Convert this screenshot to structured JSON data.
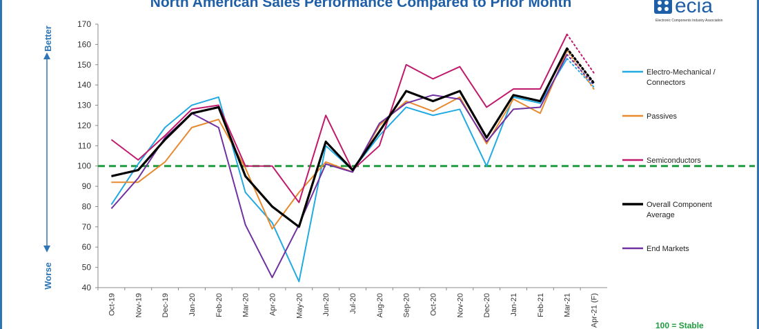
{
  "logo": {
    "word": "ecia",
    "subtitle": "Electronic Components Industry Association"
  },
  "annotations": {
    "better": "Better",
    "worse": "Worse",
    "stable": "100 = Stable"
  },
  "colors": {
    "electro": "#21a9e1",
    "passives": "#e8892e",
    "semis": "#c0196b",
    "overall": "#000000",
    "end": "#7030a0",
    "baseline": "#1e9b3c",
    "arrow": "#2e75b6"
  },
  "chart_data": {
    "type": "line",
    "title": "North American Sales Performance Compared to Prior Month",
    "categories": [
      "Oct-19",
      "Nov-19",
      "Dec-19",
      "Jan-20",
      "Feb-20",
      "Mar-20",
      "Apr-20",
      "May-20",
      "Jun-20",
      "Jul-20",
      "Aug-20",
      "Sep-20",
      "Oct-20",
      "Nov-20",
      "Dec-20",
      "Jan-21",
      "Feb-21",
      "Mar-21",
      "Apr-21 (F)"
    ],
    "ylim": [
      40,
      170
    ],
    "yticks": [
      40,
      50,
      60,
      70,
      80,
      90,
      100,
      110,
      120,
      130,
      140,
      150,
      160,
      170
    ],
    "baseline": 100,
    "forecast_last_point": true,
    "series": [
      {
        "name": "Electro-Mechanical / Connectors",
        "key": "electro",
        "values": [
          81,
          101,
          119,
          130,
          134,
          87,
          72,
          43,
          110,
          98,
          115,
          129,
          125,
          128,
          100,
          134,
          131,
          153,
          139
        ]
      },
      {
        "name": "Passives",
        "key": "passives",
        "values": [
          92,
          92,
          102,
          119,
          123,
          99,
          69,
          87,
          102,
          97,
          120,
          132,
          127,
          134,
          111,
          133,
          126,
          157,
          138
        ]
      },
      {
        "name": "Semiconductors",
        "key": "semis",
        "values": [
          113,
          103,
          115,
          128,
          130,
          100,
          100,
          82,
          125,
          98,
          110,
          150,
          143,
          149,
          129,
          138,
          138,
          165,
          146
        ]
      },
      {
        "name": "Overall Component Average",
        "key": "overall",
        "values": [
          95,
          98,
          113,
          126,
          129,
          95,
          80,
          70,
          112,
          98,
          117,
          137,
          132,
          137,
          114,
          135,
          132,
          158,
          141
        ]
      },
      {
        "name": "End Markets",
        "key": "end",
        "values": [
          79,
          94,
          114,
          126,
          119,
          71,
          45,
          71,
          101,
          97,
          121,
          131,
          135,
          133,
          112,
          128,
          129,
          155,
          140
        ]
      }
    ]
  }
}
